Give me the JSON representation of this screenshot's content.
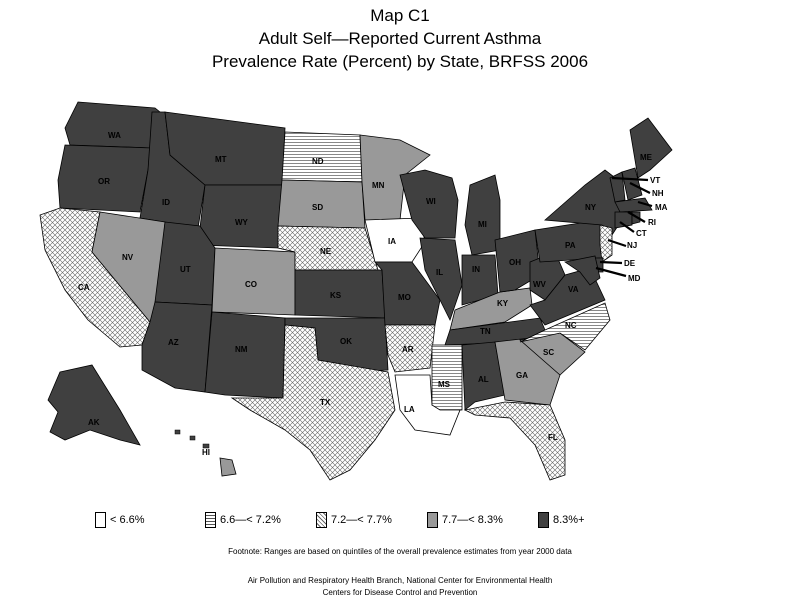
{
  "titles": {
    "line1": "Map C1",
    "line2": "Adult Self—Reported Current Asthma",
    "line3": "Prevalence Rate (Percent) by State, BRFSS 2006"
  },
  "legend": [
    {
      "label": "< 6.6%",
      "pattern": "white"
    },
    {
      "label": "6.6—< 7.2%",
      "pattern": "hlines"
    },
    {
      "label": "7.2—< 7.7%",
      "pattern": "crosshatch"
    },
    {
      "label": "7.7—< 8.3%",
      "pattern": "gray"
    },
    {
      "label": "8.3%+",
      "pattern": "dark"
    }
  ],
  "states": {
    "WA": "dark",
    "OR": "dark",
    "CA": "crosshatch",
    "ID": "dark",
    "NV": "gray",
    "MT": "dark",
    "WY": "dark",
    "UT": "dark",
    "AZ": "dark",
    "CO": "gray",
    "NM": "dark",
    "ND": "hlines",
    "SD": "gray",
    "NE": "crosshatch",
    "KS": "dark",
    "OK": "dark",
    "TX": "crosshatch",
    "MN": "gray",
    "IA": "white",
    "MO": "dark",
    "AR": "crosshatch",
    "LA": "white",
    "WI": "dark",
    "IL": "dark",
    "MS": "hlines",
    "MI": "dark",
    "IN": "dark",
    "KY": "gray",
    "TN": "dark",
    "AL": "dark",
    "OH": "dark",
    "GA": "gray",
    "FL": "crosshatch",
    "SC": "gray",
    "NC": "hlines",
    "WV": "dark",
    "VA": "dark",
    "PA": "dark",
    "NY": "dark",
    "ME": "dark",
    "VT": "dark",
    "NH": "dark",
    "MA": "dark",
    "RI": "dark",
    "CT": "dark",
    "NJ": "crosshatch",
    "DE": "dark",
    "MD": "dark",
    "AK": "dark",
    "HI": "gray"
  },
  "colors": {
    "dark": "#404040",
    "gray": "#999999",
    "white": "#ffffff",
    "line": "#000000"
  },
  "footnote": "Footnote: Ranges are based on quintiles of the overall prevalence estimates from year 2000 data",
  "credits": {
    "line1": "Air Pollution and Respiratory Health Branch, National Center for Environmental Health",
    "line2": "Centers for Disease Control and Prevention"
  }
}
